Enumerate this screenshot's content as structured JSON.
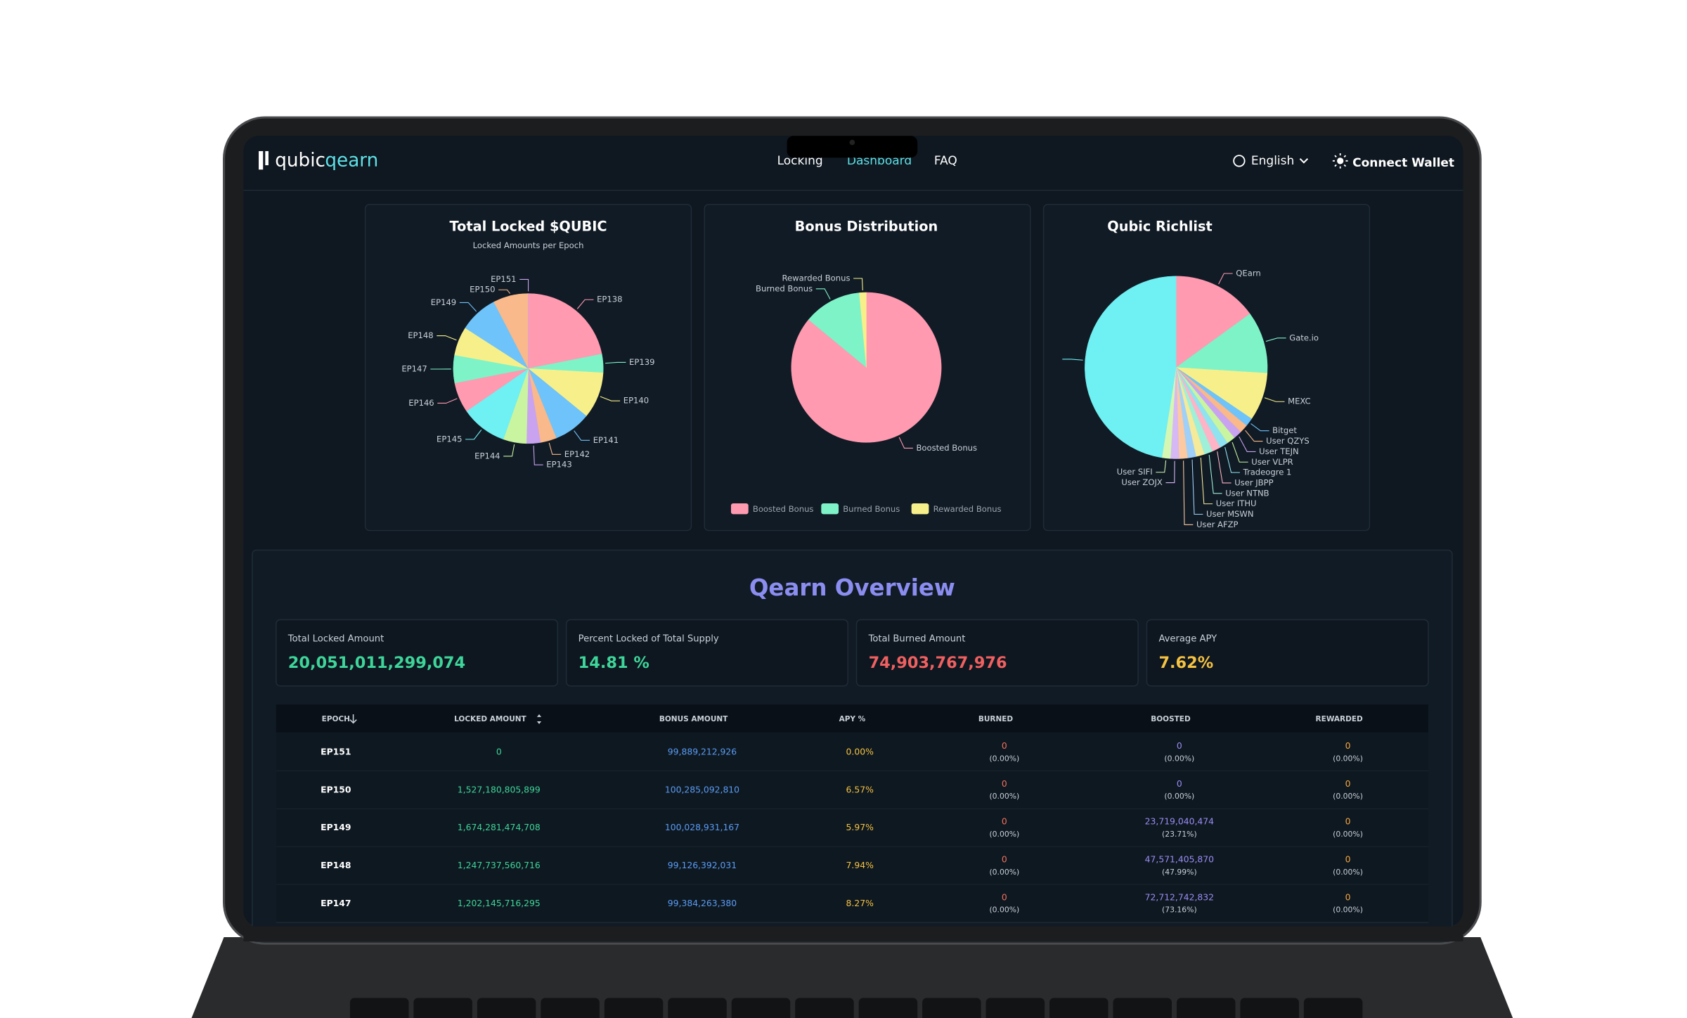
{
  "header": {
    "logo_main": "qubic",
    "logo_sub": "qearn",
    "nav": [
      "Locking",
      "Dashboard",
      "FAQ"
    ],
    "language": "English",
    "connect": "Connect Wallet"
  },
  "chart_data": [
    {
      "type": "pie",
      "title": "Total Locked $QUBIC",
      "subtitle": "Locked Amounts per Epoch",
      "categories": [
        "EP138",
        "EP139",
        "EP140",
        "EP141",
        "EP142",
        "EP143",
        "EP144",
        "EP145",
        "EP146",
        "EP147",
        "EP148",
        "EP149",
        "EP150",
        "EP151"
      ],
      "values": [
        21.9,
        4,
        10,
        8,
        3.5,
        3,
        5,
        10,
        6.5,
        6,
        6.2,
        8.3,
        7.6,
        0
      ],
      "colors": [
        "#ff9ab0",
        "#7ef3c8",
        "#f7f08a",
        "#6ec3fa",
        "#f9b98a",
        "#c9a3f0",
        "#c9f5a0",
        "#6ff0f2"
      ],
      "legend": false
    },
    {
      "type": "pie",
      "title": "Bonus Distribution",
      "categories": [
        "Boosted Bonus",
        "Burned Bonus",
        "Rewarded Bonus"
      ],
      "values": [
        86,
        12.5,
        1.5
      ],
      "colors": [
        "#ff9ab0",
        "#7ef3c8",
        "#f7f08a"
      ],
      "legend": "bottom"
    },
    {
      "type": "pie",
      "title": "Qubic Richlist",
      "categories": [
        "QEarn",
        "Gate.io",
        "MEXC",
        "Bitget",
        "User QZYS",
        "User TEJN",
        "User VLPR",
        "Tradeogre 1",
        "User JBPP",
        "User NTNB",
        "User ITHU",
        "User MSWN",
        "User AFZP",
        "User ZOJX",
        "User SIFI",
        null
      ],
      "values": [
        15,
        11,
        8.5,
        1.5,
        1.5,
        1.5,
        1.5,
        1.5,
        1.5,
        1.5,
        1.5,
        1.5,
        1.5,
        1.5,
        1.5,
        47.5
      ],
      "colors": [
        "#ff9ab0",
        "#7ef3c8",
        "#f7f08a",
        "#6ec3fa",
        "#f9b98a",
        "#c9a3f0",
        "#c9f5a0",
        "#8fe3f0",
        "#ffb3c6",
        "#9ff0d8",
        "#f5e99a",
        "#9fd0fa",
        "#fcc9a0",
        "#d6b8f5",
        "#d4f7b3",
        "#6ff0f2"
      ],
      "legend": false
    }
  ],
  "overview": {
    "title": "Qearn Overview",
    "stats": [
      {
        "label": "Total Locked Amount",
        "value": "20,051,011,299,074"
      },
      {
        "label": "Percent Locked of Total Supply",
        "value": "14.81 %"
      },
      {
        "label": "Total Burned Amount",
        "value": "74,903,767,976"
      },
      {
        "label": "Average APY",
        "value": "7.62%"
      }
    ]
  },
  "table": {
    "columns": [
      "EPOCH",
      "LOCKED AMOUNT",
      "BONUS AMOUNT",
      "APY %",
      "BURNED",
      "BOOSTED",
      "REWARDED"
    ],
    "rows": [
      [
        "EP151",
        "0",
        "99,889,212,926",
        "0.00%",
        {
          "amount": "0",
          "percent": "(0.00%)"
        },
        {
          "amount": "0",
          "percent": "(0.00%)"
        },
        {
          "amount": "0",
          "percent": "(0.00%)"
        }
      ],
      [
        "EP150",
        "1,527,180,805,899",
        "100,285,092,810",
        "6.57%",
        {
          "amount": "0",
          "percent": "(0.00%)"
        },
        {
          "amount": "0",
          "percent": "(0.00%)"
        },
        {
          "amount": "0",
          "percent": "(0.00%)"
        }
      ],
      [
        "EP149",
        "1,674,281,474,708",
        "100,028,931,167",
        "5.97%",
        {
          "amount": "0",
          "percent": "(0.00%)"
        },
        {
          "amount": "23,719,040,474",
          "percent": "(23.71%)"
        },
        {
          "amount": "0",
          "percent": "(0.00%)"
        }
      ],
      [
        "EP148",
        "1,247,737,560,716",
        "99,126,392,031",
        "7.94%",
        {
          "amount": "0",
          "percent": "(0.00%)"
        },
        {
          "amount": "47,571,405,870",
          "percent": "(47.99%)"
        },
        {
          "amount": "0",
          "percent": "(0.00%)"
        }
      ],
      [
        "EP147",
        "1,202,145,716,295",
        "99,384,263,380",
        "8.27%",
        {
          "amount": "0",
          "percent": "(0.00%)"
        },
        {
          "amount": "72,712,742,832",
          "percent": "(73.16%)"
        },
        {
          "amount": "0",
          "percent": "(0.00%)"
        }
      ]
    ]
  }
}
